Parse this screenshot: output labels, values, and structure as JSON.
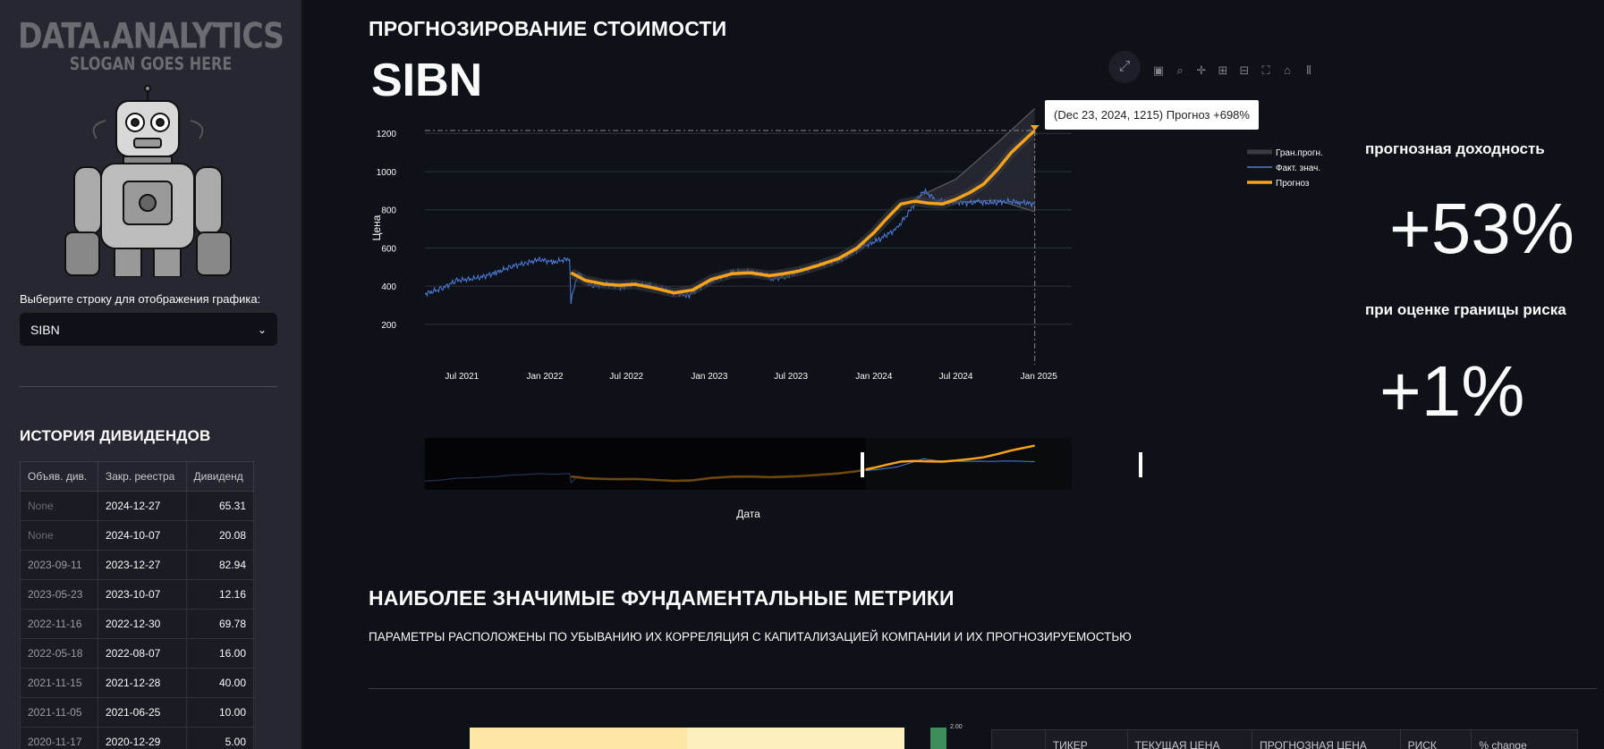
{
  "sidebar": {
    "logo_main": "DATA.ANALYTICS",
    "logo_sub": "SLOGAN GOES HERE",
    "select_label": "Выберите строку для отображения графика:",
    "select_value": "SIBN",
    "dividends_title": "ИСТОРИЯ ДИВИДЕНДОВ",
    "dividends_headers": [
      "Объяв. див.",
      "Закр. реестра",
      "Дивиденд"
    ],
    "dividends_rows": [
      [
        "None",
        "2024-12-27",
        "65.31"
      ],
      [
        "None",
        "2024-10-07",
        "20.08"
      ],
      [
        "2023-09-11",
        "2023-12-27",
        "82.94"
      ],
      [
        "2023-05-23",
        "2023-10-07",
        "12.16"
      ],
      [
        "2022-11-16",
        "2022-12-30",
        "69.78"
      ],
      [
        "2022-05-18",
        "2022-08-07",
        "16.00"
      ],
      [
        "2021-11-15",
        "2021-12-28",
        "40.00"
      ],
      [
        "2021-11-05",
        "2021-06-25",
        "10.00"
      ],
      [
        "2020-11-17",
        "2020-12-29",
        "5.00"
      ]
    ]
  },
  "main": {
    "header_title": "ПРОГНОЗИРОВАНИЕ СТОИМОСТИ",
    "ticker": "SIBN",
    "tooltip": "(Dec 23, 2024, 1215) Прогноз +698%",
    "kpi1_label": "прогнозная доходность",
    "kpi1_value": "+53%",
    "kpi2_label": "при оценке границы риска",
    "kpi2_value": "+1%",
    "section_title": "НАИБОЛЕЕ ЗНАЧИМЫЕ ФУНДАМЕНТАЛЬНЫЕ МЕТРИКИ",
    "section_subtitle": "ПАРАМЕТРЫ РАСПОЛОЖЕНЫ ПО УБЫВАНИЮ ИХ КОРРЕЛЯЦИЯ С КАПИТАЛИЗАЦИЕЙ КОМПАНИИ И ИХ ПРОГНОЗИРУЕМОСТЬЮ",
    "colorbar_tick": "2.00",
    "bottom_table_headers": [
      "",
      "ТИКЕР",
      "ТЕКУЩАЯ ЦЕНА",
      "ПРОГНОЗНАЯ ЦЕНА",
      "РИСК",
      "% change"
    ]
  },
  "modebar_icons": [
    "camera-icon",
    "zoom-icon",
    "pan-icon",
    "zoom-in-icon",
    "zoom-out-icon",
    "autoscale-icon",
    "home-icon",
    "plotly-logo-icon"
  ],
  "chart_data": {
    "type": "line",
    "xlabel": "Дата",
    "ylabel": "Цена",
    "y_ticks": [
      200,
      400,
      600,
      800,
      1000,
      1200
    ],
    "x_ticks": [
      "Jul 2021",
      "Jan 2022",
      "Jul 2022",
      "Jan 2023",
      "Jul 2023",
      "Jan 2024",
      "Jul 2024",
      "Jan 2025"
    ],
    "ylim": [
      120,
      1290
    ],
    "xlim": [
      "2021-04-10",
      "2025-03-15"
    ],
    "legend": [
      "Гран.прогн.",
      "Факт. знач.",
      "Прогноз"
    ],
    "legend_position": "top-right",
    "colors": {
      "actual": "#4f7fe0",
      "forecast": "#f7a21b",
      "bounds": "#6b6d75"
    },
    "series": [
      {
        "name": "Факт. знач.",
        "x": [
          "2021-04-10",
          "2021-05-15",
          "2021-06-20",
          "2021-08-01",
          "2021-09-15",
          "2021-10-20",
          "2021-11-20",
          "2021-12-20",
          "2022-01-20",
          "2022-02-25",
          "2022-02-28",
          "2022-03-15",
          "2022-04-15",
          "2022-05-20",
          "2022-06-20",
          "2022-07-20",
          "2022-08-20",
          "2022-09-20",
          "2022-10-25",
          "2022-11-15",
          "2022-12-20",
          "2023-01-20",
          "2023-02-20",
          "2023-03-20",
          "2023-04-20",
          "2023-05-20",
          "2023-06-20",
          "2023-07-20",
          "2023-08-20",
          "2023-09-20",
          "2023-10-20",
          "2023-11-10",
          "2023-12-01",
          "2024-01-10",
          "2024-02-20",
          "2024-03-20",
          "2024-04-20",
          "2024-05-20",
          "2024-06-20",
          "2024-07-20",
          "2024-08-20",
          "2024-09-20",
          "2024-10-20",
          "2024-11-20",
          "2024-12-23"
        ],
        "values": [
          360,
          385,
          430,
          440,
          470,
          505,
          520,
          540,
          525,
          545,
          320,
          470,
          400,
          410,
          395,
          410,
          405,
          380,
          360,
          350,
          410,
          440,
          470,
          480,
          470,
          440,
          450,
          480,
          500,
          520,
          540,
          570,
          600,
          640,
          700,
          790,
          900,
          850,
          840,
          835,
          840,
          835,
          845,
          840,
          830
        ]
      },
      {
        "name": "Прогноз",
        "x": [
          "2022-02-28",
          "2022-04-01",
          "2022-05-15",
          "2022-06-15",
          "2022-07-20",
          "2022-09-01",
          "2022-10-15",
          "2022-11-25",
          "2023-01-05",
          "2023-02-20",
          "2023-04-01",
          "2023-05-15",
          "2023-06-15",
          "2023-07-20",
          "2023-09-01",
          "2023-10-15",
          "2023-11-25",
          "2024-01-01",
          "2024-02-01",
          "2024-03-01",
          "2024-04-01",
          "2024-05-01",
          "2024-06-01",
          "2024-07-01",
          "2024-08-01",
          "2024-09-01",
          "2024-10-01",
          "2024-11-01",
          "2024-12-23"
        ],
        "values": [
          470,
          430,
          410,
          405,
          410,
          390,
          365,
          380,
          435,
          465,
          470,
          455,
          465,
          480,
          510,
          545,
          600,
          680,
          760,
          830,
          845,
          835,
          830,
          855,
          890,
          935,
          1010,
          1100,
          1215
        ]
      },
      {
        "name": "Гран.прогн.",
        "x": [
          "2024-04-01",
          "2024-07-01",
          "2024-10-01",
          "2024-12-23"
        ],
        "values_upper": [
          860,
          960,
          1150,
          1330
        ],
        "values_lower": [
          840,
          840,
          850,
          790
        ]
      }
    ]
  }
}
